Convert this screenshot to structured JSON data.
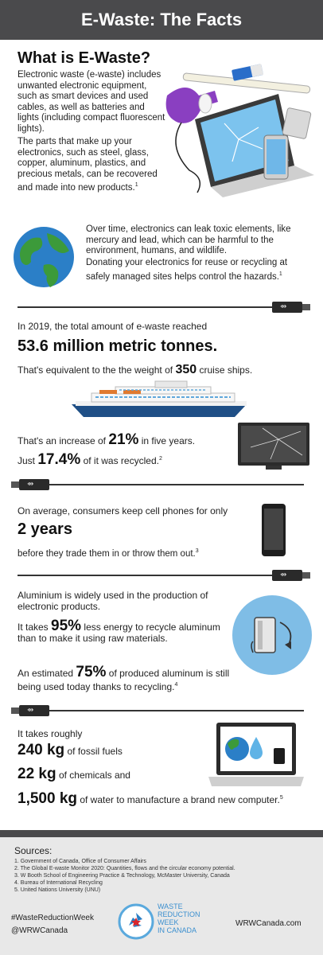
{
  "header": {
    "title": "E-Waste: The Facts"
  },
  "what": {
    "heading": "What is E-Waste?",
    "p1": "Electronic waste (e-waste) includes unwanted electronic equipment, such as smart devices and used cables, as well as batteries and lights (including compact fluorescent lights).",
    "p2": "The parts that make up your electronics, such as steel, glass, copper, aluminum, plastics, and precious metals, can be recovered and made into new products.",
    "p2_ref": "1"
  },
  "toxic": {
    "p1": "Over time, electronics can leak toxic elements, like mercury and lead, which can be harmful to the environment, humans, and wildlife.",
    "p2": "Donating your electronics for reuse or recycling at safely managed sites helps control the hazards.",
    "p2_ref": "1"
  },
  "total": {
    "intro": "In 2019, the total amount of e-waste reached",
    "amount": "53.6 million metric tonnes.",
    "equiv_pre": "That's equivalent to the the weight of",
    "equiv_num": "350",
    "equiv_post": "cruise ships."
  },
  "increase": {
    "pre": "That's an increase of",
    "num": "21%",
    "post": "in five years.",
    "just": "Just",
    "recycled_num": "17.4%",
    "recycled_post": "of it was recycled.",
    "ref": "2"
  },
  "phones": {
    "intro": "On average, consumers keep cell phones for only",
    "years": "2 years",
    "post": "before they trade them in or throw them out.",
    "ref": "3"
  },
  "aluminium": {
    "p1": "Aluminium is widely used in the production of electronic products.",
    "e_pre": "It takes",
    "e_num": "95%",
    "e_post": "less energy to recycle aluminum than to make it using raw materials.",
    "a_pre": "An estimated",
    "a_num": "75%",
    "a_post": "of produced aluminum is still being used today thanks to recycling.",
    "ref": "4"
  },
  "computer": {
    "intro": "It takes roughly",
    "fossil_num": "240 kg",
    "fossil_post": "of fossil fuels",
    "chem_num": "22 kg",
    "chem_post": "of chemicals and",
    "water_num": "1,500 kg",
    "water_post": "of water to manufacture a brand new computer.",
    "ref": "5"
  },
  "sources": {
    "title": "Sources:",
    "items": [
      "1. Government of Canada, Office of Consumer Affairs",
      "2. The Global E-waste Monitor 2020: Quantities, flows and the circular economy potential.",
      "3. W Booth School of Engineering Practice & Technology, McMaster University, Canada",
      "4. Bureau of International Recycling",
      "5. United Nations University (UNU)"
    ]
  },
  "footer": {
    "hashtag": "#WasteReductionWeek",
    "handle": "@WRWCanada",
    "logo_line1": "WASTE",
    "logo_line2": "REDUCTION",
    "logo_line3": "WEEK",
    "logo_line4": "IN CANADA",
    "site": "WRWCanada.com"
  },
  "colors": {
    "header": "#4a4a4c",
    "accent_blue": "#63b3e6",
    "cable": "#333333"
  }
}
